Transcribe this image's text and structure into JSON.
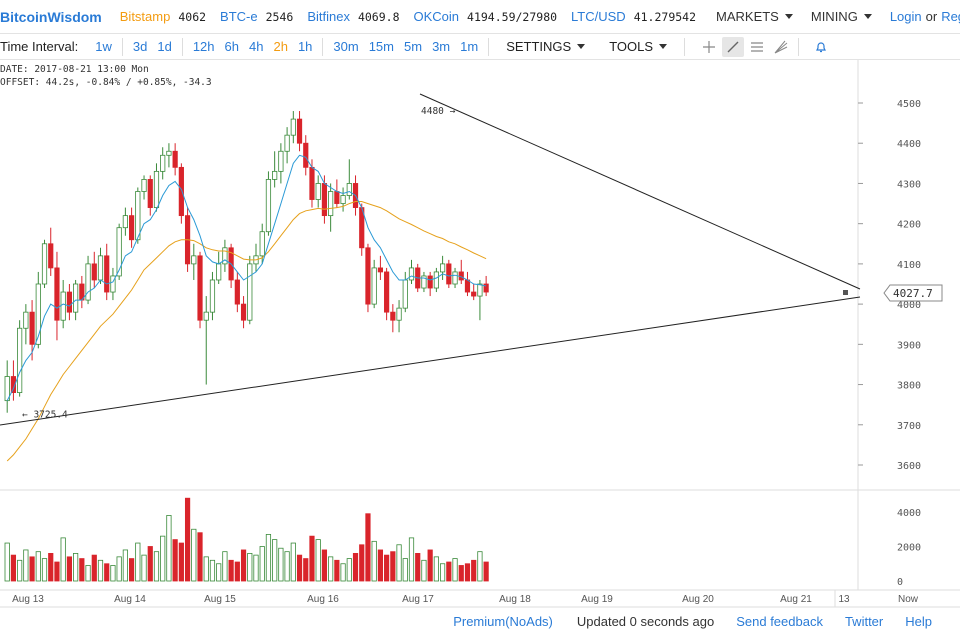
{
  "header": {
    "brand": "BitcoinWisdom",
    "markets": [
      {
        "name": "Bitstamp",
        "price": "4062",
        "color": "#f39c12"
      },
      {
        "name": "BTC-e",
        "price": "2546",
        "color": "#2a7bd6"
      },
      {
        "name": "Bitfinex",
        "price": "4069.8",
        "color": "#2a7bd6"
      },
      {
        "name": "OKCoin",
        "price": "4194.59/27980",
        "color": "#2a7bd6"
      },
      {
        "name": "LTC/USD",
        "price": "41.279542",
        "color": "#2a7bd6"
      }
    ],
    "menus": {
      "markets": "MARKETS",
      "mining": "MINING"
    },
    "auth": {
      "login": "Login",
      "or": "or",
      "register": "Register"
    }
  },
  "toolbar": {
    "label": "Time Interval:",
    "intervals": [
      "1w",
      "3d",
      "1d",
      "12h",
      "6h",
      "4h",
      "2h",
      "1h",
      "30m",
      "15m",
      "5m",
      "3m",
      "1m"
    ],
    "active_interval": "2h",
    "settings": "SETTINGS",
    "tools": "TOOLS",
    "tool_icons": [
      "crosshair-icon",
      "line-draw-icon",
      "horizontal-lines-icon",
      "fib-fan-icon",
      "bell-icon"
    ]
  },
  "info": {
    "date": "DATE: 2017-08-21 13:00 Mon",
    "offset": "OFFSET: 44.2s, -0.84% / +0.85%, -34.3"
  },
  "footer": {
    "premium": "Premium(NoAds)",
    "updated": "Updated 0 seconds ago",
    "feedback": "Send feedback",
    "twitter": "Twitter",
    "help": "Help"
  },
  "colors": {
    "up": "#3a8a3a",
    "down": "#d9242b",
    "ema_fast": "#2b9ad6",
    "ema_slow": "#e6a11c",
    "trendline": "#222222"
  },
  "chart_data": {
    "type": "candlestick",
    "price_axis": [
      3600,
      3700,
      3800,
      3900,
      4000,
      4100,
      4200,
      4300,
      4400,
      4500
    ],
    "volume_axis": [
      0,
      2000,
      4000
    ],
    "x_labels": [
      "Aug 13",
      "Aug 14",
      "Aug 15",
      "Aug 16",
      "Aug 17",
      "Aug 18",
      "Aug 19",
      "Aug 20",
      "Aug 21",
      "13",
      "Now"
    ],
    "current_price": "4027.7",
    "annotations": [
      {
        "text": "4480",
        "price": 4480
      },
      {
        "text": "3725.4",
        "price": 3725.4
      }
    ],
    "ohlc": [
      [
        3760,
        3860,
        3730,
        3820
      ],
      [
        3820,
        3860,
        3760,
        3780
      ],
      [
        3780,
        3960,
        3770,
        3940
      ],
      [
        3940,
        4000,
        3900,
        3980
      ],
      [
        3980,
        4010,
        3860,
        3900
      ],
      [
        3900,
        4080,
        3890,
        4050
      ],
      [
        4050,
        4160,
        4040,
        4150
      ],
      [
        4150,
        4190,
        4070,
        4090
      ],
      [
        4090,
        4130,
        3910,
        3960
      ],
      [
        3960,
        4060,
        3940,
        4030
      ],
      [
        4030,
        4050,
        3960,
        3980
      ],
      [
        3980,
        4060,
        3960,
        4050
      ],
      [
        4050,
        4070,
        3990,
        4010
      ],
      [
        4010,
        4120,
        4000,
        4100
      ],
      [
        4100,
        4130,
        4040,
        4060
      ],
      [
        4060,
        4140,
        4050,
        4120
      ],
      [
        4120,
        4150,
        4010,
        4030
      ],
      [
        4030,
        4090,
        4010,
        4070
      ],
      [
        4070,
        4200,
        4060,
        4190
      ],
      [
        4190,
        4240,
        4170,
        4220
      ],
      [
        4220,
        4240,
        4140,
        4160
      ],
      [
        4160,
        4290,
        4150,
        4280
      ],
      [
        4280,
        4320,
        4260,
        4310
      ],
      [
        4310,
        4320,
        4220,
        4240
      ],
      [
        4240,
        4350,
        4230,
        4330
      ],
      [
        4330,
        4390,
        4310,
        4370
      ],
      [
        4370,
        4400,
        4340,
        4380
      ],
      [
        4380,
        4400,
        4320,
        4340
      ],
      [
        4340,
        4350,
        4200,
        4220
      ],
      [
        4220,
        4240,
        4080,
        4100
      ],
      [
        4100,
        4150,
        4060,
        4120
      ],
      [
        4120,
        4130,
        3940,
        3960
      ],
      [
        3960,
        4020,
        3800,
        3980
      ],
      [
        3980,
        4080,
        3960,
        4060
      ],
      [
        4060,
        4130,
        4050,
        4100
      ],
      [
        4100,
        4160,
        4080,
        4140
      ],
      [
        4140,
        4150,
        4040,
        4060
      ],
      [
        4060,
        4080,
        3980,
        4000
      ],
      [
        4000,
        4020,
        3940,
        3960
      ],
      [
        3960,
        4120,
        3950,
        4100
      ],
      [
        4100,
        4150,
        4080,
        4120
      ],
      [
        4120,
        4200,
        4100,
        4180
      ],
      [
        4180,
        4330,
        4170,
        4310
      ],
      [
        4310,
        4380,
        4290,
        4330
      ],
      [
        4330,
        4400,
        4300,
        4380
      ],
      [
        4380,
        4440,
        4350,
        4420
      ],
      [
        4420,
        4480,
        4400,
        4460
      ],
      [
        4460,
        4480,
        4380,
        4400
      ],
      [
        4400,
        4420,
        4320,
        4340
      ],
      [
        4340,
        4360,
        4240,
        4260
      ],
      [
        4260,
        4320,
        4240,
        4300
      ],
      [
        4300,
        4320,
        4200,
        4220
      ],
      [
        4220,
        4300,
        4180,
        4280
      ],
      [
        4280,
        4310,
        4240,
        4250
      ],
      [
        4250,
        4290,
        4230,
        4270
      ],
      [
        4270,
        4360,
        4260,
        4300
      ],
      [
        4300,
        4320,
        4220,
        4240
      ],
      [
        4240,
        4250,
        4120,
        4140
      ],
      [
        4140,
        4150,
        3980,
        4000
      ],
      [
        4000,
        4110,
        3990,
        4090
      ],
      [
        4090,
        4120,
        4060,
        4080
      ],
      [
        4080,
        4090,
        3960,
        3980
      ],
      [
        3980,
        4000,
        3930,
        3960
      ],
      [
        3960,
        4010,
        3930,
        3990
      ],
      [
        3990,
        4080,
        3980,
        4060
      ],
      [
        4060,
        4110,
        4050,
        4090
      ],
      [
        4090,
        4100,
        4030,
        4040
      ],
      [
        4040,
        4080,
        4030,
        4070
      ],
      [
        4070,
        4080,
        4020,
        4040
      ],
      [
        4040,
        4090,
        4030,
        4080
      ],
      [
        4080,
        4120,
        4060,
        4100
      ],
      [
        4100,
        4110,
        4040,
        4050
      ],
      [
        4050,
        4090,
        4040,
        4080
      ],
      [
        4080,
        4110,
        4050,
        4060
      ],
      [
        4060,
        4080,
        4020,
        4030
      ],
      [
        4030,
        4050,
        4010,
        4020
      ],
      [
        4020,
        4060,
        3960,
        4050
      ],
      [
        4050,
        4070,
        4020,
        4030
      ]
    ],
    "ema_fast": [
      3760,
      3790,
      3830,
      3860,
      3880,
      3920,
      3970,
      4000,
      3990,
      4000,
      3995,
      4010,
      4010,
      4030,
      4040,
      4060,
      4050,
      4055,
      4085,
      4120,
      4130,
      4165,
      4200,
      4210,
      4235,
      4270,
      4295,
      4305,
      4285,
      4240,
      4210,
      4170,
      4120,
      4105,
      4100,
      4110,
      4100,
      4080,
      4060,
      4070,
      4080,
      4100,
      4150,
      4200,
      4250,
      4300,
      4350,
      4370,
      4365,
      4340,
      4330,
      4300,
      4290,
      4280,
      4275,
      4280,
      4270,
      4240,
      4190,
      4160,
      4140,
      4110,
      4080,
      4060,
      4060,
      4070,
      4065,
      4065,
      4060,
      4065,
      4075,
      4070,
      4072,
      4068,
      4060,
      4050,
      4048,
      4045
    ],
    "ema_slow": [
      3610,
      3625,
      3645,
      3665,
      3690,
      3715,
      3745,
      3775,
      3800,
      3825,
      3845,
      3865,
      3885,
      3905,
      3925,
      3945,
      3960,
      3975,
      3995,
      4015,
      4035,
      4060,
      4085,
      4100,
      4115,
      4130,
      4145,
      4155,
      4160,
      4160,
      4158,
      4150,
      4140,
      4135,
      4132,
      4132,
      4128,
      4120,
      4112,
      4110,
      4110,
      4115,
      4130,
      4150,
      4170,
      4190,
      4210,
      4225,
      4232,
      4235,
      4238,
      4236,
      4238,
      4240,
      4243,
      4250,
      4255,
      4255,
      4250,
      4245,
      4240,
      4232,
      4222,
      4212,
      4205,
      4198,
      4190,
      4182,
      4175,
      4168,
      4163,
      4155,
      4150,
      4142,
      4135,
      4127,
      4120,
      4113
    ],
    "volumes": [
      2200,
      1500,
      1200,
      1800,
      1400,
      1700,
      1300,
      1600,
      1100,
      2500,
      1400,
      1600,
      1300,
      900,
      1500,
      1200,
      1000,
      900,
      1400,
      1800,
      1300,
      2200,
      1500,
      2000,
      1700,
      2600,
      3800,
      2400,
      2200,
      4800,
      3000,
      2800,
      1400,
      1200,
      1000,
      1700,
      1200,
      1100,
      1800,
      1600,
      1500,
      2000,
      2700,
      2400,
      1900,
      1700,
      2200,
      1500,
      1300,
      2600,
      2400,
      1800,
      1400,
      1200,
      1000,
      1300,
      1600,
      2100,
      3900,
      2300,
      1800,
      1500,
      1700,
      2100,
      1300,
      2500,
      1600,
      1200,
      1800,
      1400,
      1000,
      1100,
      1300,
      900,
      1000,
      1200,
      1700,
      1100
    ]
  }
}
